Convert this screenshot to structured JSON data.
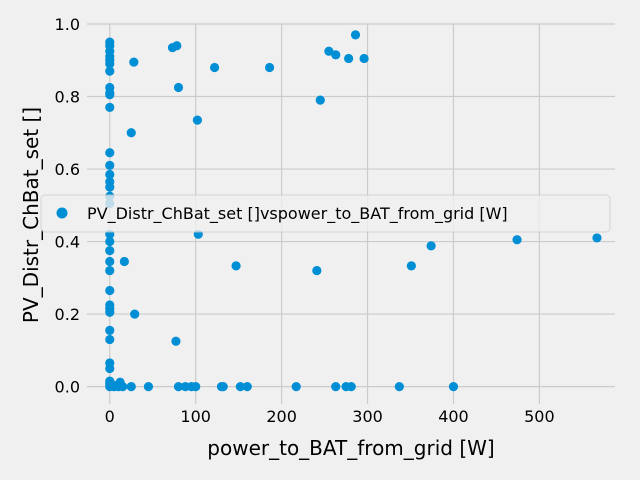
{
  "chart_data": {
    "type": "scatter",
    "xlabel": "power_to_BAT_from_grid [W]",
    "ylabel": "PV_Distr_ChBat_set []",
    "xlim": [
      -26.5,
      588
    ],
    "ylim": [
      -0.048,
      1.0
    ],
    "xticks": [
      0,
      100,
      200,
      300,
      400,
      500
    ],
    "yticks": [
      0.0,
      0.2,
      0.4,
      0.6,
      0.8,
      1.0
    ],
    "xtick_labels": [
      "0",
      "100",
      "200",
      "300",
      "400",
      "500"
    ],
    "ytick_labels": [
      "0.0",
      "0.2",
      "0.4",
      "0.6",
      "0.8",
      "1.0"
    ],
    "grid": true,
    "legend_position": "center",
    "colors": {
      "marker": "#008fd5",
      "grid": "#cbcbcb",
      "background": "#f0f0f0"
    },
    "series": [
      {
        "name": "PV_Distr_ChBat_set []vspower_to_BAT_from_grid [W]",
        "points": [
          [
            0,
            0.95
          ],
          [
            0,
            0.94
          ],
          [
            0,
            0.925
          ],
          [
            0,
            0.91
          ],
          [
            0,
            0.9
          ],
          [
            0,
            0.89
          ],
          [
            0,
            0.87
          ],
          [
            0,
            0.825
          ],
          [
            0,
            0.81
          ],
          [
            0,
            0.805
          ],
          [
            0,
            0.77
          ],
          [
            0,
            0.645
          ],
          [
            0,
            0.61
          ],
          [
            0,
            0.585
          ],
          [
            0,
            0.565
          ],
          [
            0,
            0.55
          ],
          [
            0,
            0.525
          ],
          [
            0,
            0.505
          ],
          [
            0,
            0.42
          ],
          [
            0,
            0.4
          ],
          [
            0,
            0.375
          ],
          [
            0,
            0.345
          ],
          [
            0,
            0.32
          ],
          [
            0,
            0.265
          ],
          [
            0,
            0.225
          ],
          [
            0,
            0.215
          ],
          [
            0,
            0.205
          ],
          [
            0,
            0.155
          ],
          [
            0,
            0.13
          ],
          [
            0,
            0.065
          ],
          [
            0,
            0.05
          ],
          [
            0,
            0.015
          ],
          [
            0,
            0.01
          ],
          [
            0,
            0.005
          ],
          [
            0,
            0.0
          ],
          [
            3,
            0.005
          ],
          [
            5,
            0.0
          ],
          [
            10,
            0.0
          ],
          [
            12,
            0.012
          ],
          [
            15,
            0.0
          ],
          [
            17,
            0.345
          ],
          [
            25,
            0.0
          ],
          [
            25,
            0.7
          ],
          [
            28,
            0.895
          ],
          [
            29,
            0.2
          ],
          [
            45,
            0.0
          ],
          [
            73,
            0.935
          ],
          [
            78,
            0.94
          ],
          [
            77,
            0.125
          ],
          [
            80,
            0.825
          ],
          [
            80,
            0.0
          ],
          [
            88,
            0.0
          ],
          [
            95,
            0.0
          ],
          [
            100,
            0.0
          ],
          [
            102,
            0.735
          ],
          [
            103,
            0.42
          ],
          [
            122,
            0.88
          ],
          [
            130,
            0.0
          ],
          [
            132,
            0.0
          ],
          [
            147,
            0.333
          ],
          [
            152,
            0.0
          ],
          [
            160,
            0.0
          ],
          [
            186,
            0.88
          ],
          [
            217,
            0.0
          ],
          [
            241,
            0.32
          ],
          [
            245,
            0.79
          ],
          [
            255,
            0.925
          ],
          [
            263,
            0.915
          ],
          [
            263,
            0.0
          ],
          [
            275,
            0.0
          ],
          [
            278,
            0.905
          ],
          [
            281,
            0.0
          ],
          [
            286,
            0.97
          ],
          [
            296,
            0.905
          ],
          [
            337,
            0.0
          ],
          [
            351,
            0.333
          ],
          [
            374,
            0.388
          ],
          [
            400,
            0.0
          ],
          [
            474,
            0.405
          ],
          [
            567,
            0.41
          ]
        ]
      }
    ]
  }
}
